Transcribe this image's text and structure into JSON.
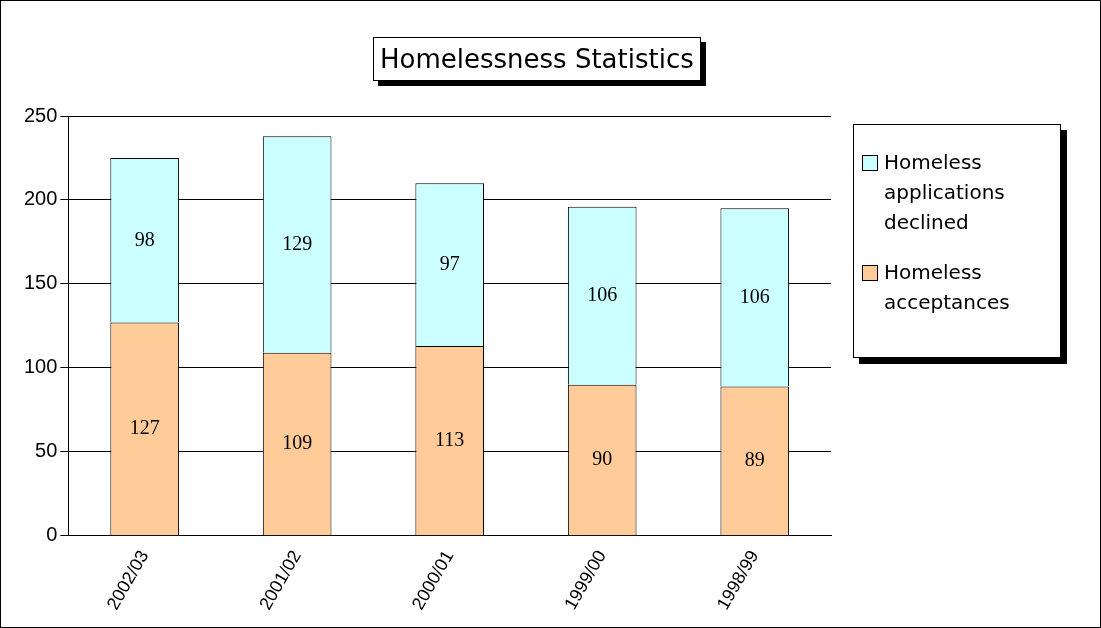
{
  "chart_data": {
    "type": "bar",
    "title": "Homelessness Statistics",
    "categories": [
      "2002/03",
      "2001/02",
      "2000/01",
      "1999/00",
      "1998/99"
    ],
    "series": [
      {
        "name": "Homeless acceptances",
        "color": "#ffcc99",
        "values": [
          127,
          109,
          113,
          90,
          89
        ]
      },
      {
        "name": "Homeless applications declined",
        "color": "#ccffff",
        "values": [
          98,
          129,
          97,
          106,
          106
        ]
      }
    ],
    "stacked": true,
    "ylim": [
      0,
      250
    ],
    "yticks": [
      0,
      50,
      100,
      150,
      200,
      250
    ],
    "grid": "y",
    "legend": "right",
    "data_labels": true
  }
}
